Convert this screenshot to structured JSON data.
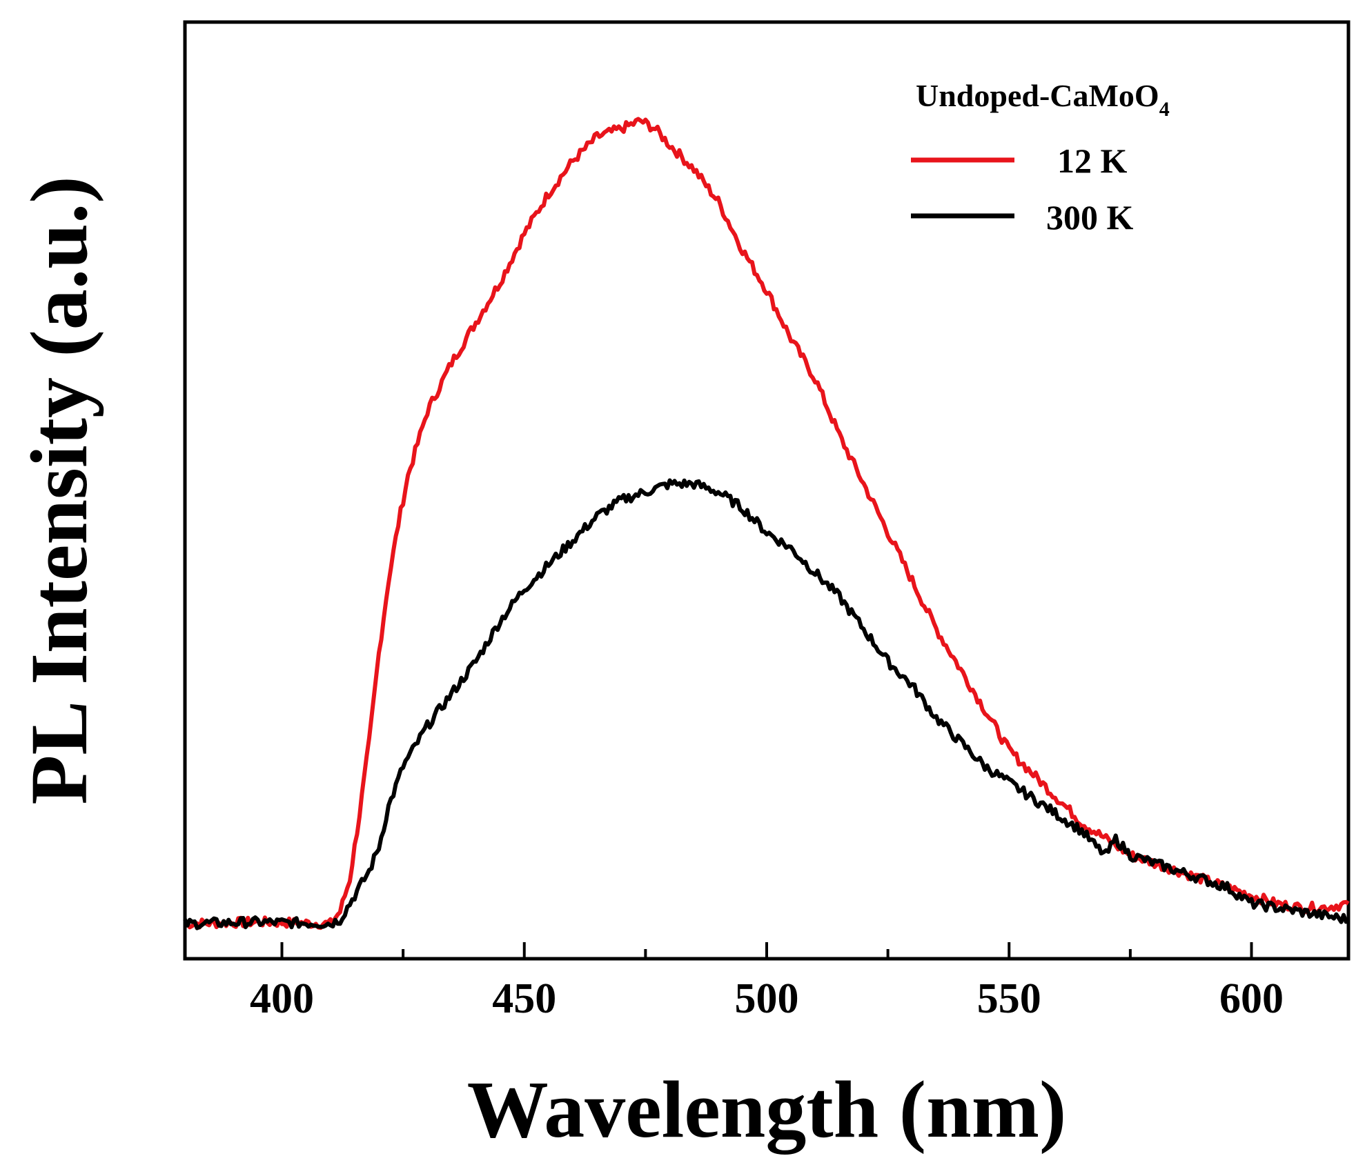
{
  "chart_data": {
    "type": "line",
    "xlabel": "Wavelength (nm)",
    "ylabel": "PL Intensity (a.u.)",
    "xlim": [
      380,
      620
    ],
    "ylim": [
      0,
      1.1
    ],
    "xticks": [
      400,
      450,
      500,
      550,
      600
    ],
    "xtick_labels": [
      "400",
      "450",
      "500",
      "550",
      "600"
    ],
    "yticks_shown": false,
    "legend": {
      "title_main": "Undoped-CaMoO",
      "title_sub": "4",
      "position": "top-right"
    },
    "series": [
      {
        "name": "12 K",
        "color": "#e8141b",
        "x": [
          380,
          395,
          410,
          412,
          414,
          416,
          418,
          420,
          422,
          424,
          426,
          428,
          430,
          435,
          440,
          445,
          450,
          455,
          460,
          465,
          470,
          474,
          477,
          480,
          485,
          490,
          495,
          500,
          505,
          510,
          515,
          520,
          525,
          530,
          535,
          540,
          545,
          550,
          555,
          560,
          565,
          570,
          575,
          580,
          585,
          590,
          595,
          600,
          605,
          610,
          615,
          620
        ],
        "values": [
          0.005,
          0.007,
          0.005,
          0.02,
          0.06,
          0.14,
          0.23,
          0.34,
          0.43,
          0.5,
          0.56,
          0.6,
          0.64,
          0.7,
          0.75,
          0.8,
          0.86,
          0.91,
          0.95,
          0.98,
          0.99,
          1.0,
          0.99,
          0.97,
          0.94,
          0.9,
          0.84,
          0.79,
          0.73,
          0.68,
          0.61,
          0.55,
          0.49,
          0.43,
          0.37,
          0.32,
          0.27,
          0.22,
          0.19,
          0.16,
          0.13,
          0.11,
          0.09,
          0.08,
          0.07,
          0.06,
          0.05,
          0.04,
          0.03,
          0.025,
          0.025,
          0.03
        ]
      },
      {
        "name": "300 K",
        "color": "#000000",
        "x": [
          380,
          395,
          410,
          412,
          414,
          416,
          418,
          420,
          422,
          425,
          428,
          430,
          435,
          440,
          445,
          450,
          455,
          460,
          465,
          470,
          475,
          480,
          485,
          490,
          495,
          500,
          505,
          510,
          515,
          520,
          525,
          530,
          535,
          540,
          545,
          550,
          555,
          560,
          565,
          568,
          570,
          572,
          575,
          580,
          585,
          590,
          595,
          600,
          605,
          610,
          615,
          620
        ],
        "values": [
          0.005,
          0.007,
          0.005,
          0.01,
          0.03,
          0.05,
          0.07,
          0.1,
          0.15,
          0.2,
          0.23,
          0.25,
          0.29,
          0.33,
          0.38,
          0.42,
          0.45,
          0.48,
          0.51,
          0.53,
          0.54,
          0.55,
          0.55,
          0.54,
          0.52,
          0.49,
          0.47,
          0.44,
          0.41,
          0.37,
          0.33,
          0.3,
          0.26,
          0.23,
          0.2,
          0.18,
          0.16,
          0.14,
          0.12,
          0.1,
          0.09,
          0.11,
          0.09,
          0.08,
          0.07,
          0.06,
          0.05,
          0.03,
          0.025,
          0.02,
          0.015,
          0.01
        ]
      }
    ]
  }
}
